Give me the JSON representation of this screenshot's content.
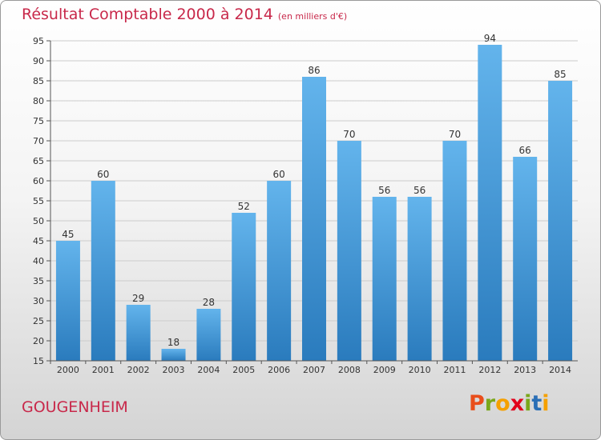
{
  "header": {
    "title": "Résultat Comptable 2000 à 2014",
    "subtitle": "(en milliers d'€)"
  },
  "footer": {
    "location": "GOUGENHEIM",
    "logo": {
      "letters": [
        "P",
        "r",
        "o",
        "x",
        "i",
        "t",
        "i"
      ],
      "colors": [
        "#e94e1b",
        "#7aa71a",
        "#f5a000",
        "#e2001a",
        "#7aa71a",
        "#2a6fb6",
        "#f5a000"
      ]
    }
  },
  "colors": {
    "bar_top": "#63b4ec",
    "bar_bottom": "#2a7bbd",
    "grid": "#cccccc",
    "title": "#c8284a"
  },
  "chart_data": {
    "type": "bar",
    "categories": [
      "2000",
      "2001",
      "2002",
      "2003",
      "2004",
      "2005",
      "2006",
      "2007",
      "2008",
      "2009",
      "2010",
      "2011",
      "2012",
      "2013",
      "2014"
    ],
    "values": [
      45,
      60,
      29,
      18,
      28,
      52,
      60,
      86,
      70,
      56,
      56,
      70,
      94,
      66,
      85
    ],
    "title": "Résultat Comptable 2000 à 2014",
    "xlabel": "",
    "ylabel": "",
    "ylim": [
      15,
      95
    ],
    "yticks": [
      15,
      20,
      25,
      30,
      35,
      40,
      45,
      50,
      55,
      60,
      65,
      70,
      75,
      80,
      85,
      90,
      95
    ],
    "grid": true,
    "data_labels": true
  }
}
